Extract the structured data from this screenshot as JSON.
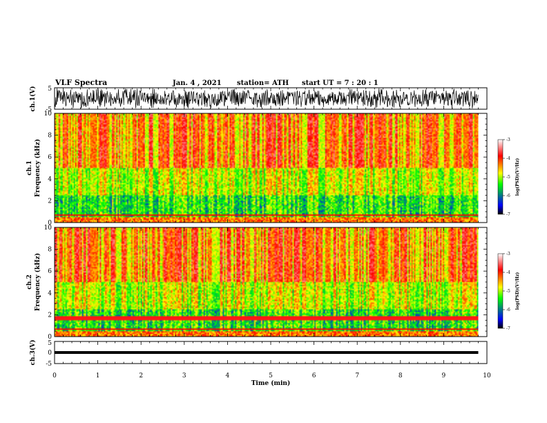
{
  "header": {
    "title": "VLF Spectra",
    "date": "Jan. 4 , 2021",
    "station": "station= ATH",
    "start": "start UT =  7 : 20 : 1"
  },
  "chart_data": {
    "type": "heatmap",
    "xlabel": "Time (min)",
    "x_ticks": [
      "0",
      "1",
      "2",
      "3",
      "4",
      "5",
      "6",
      "7",
      "8",
      "9",
      "10"
    ],
    "xlim": [
      0,
      10
    ],
    "data_end_min": 9.8,
    "panels": [
      {
        "id": "ch1-wave",
        "kind": "waveform",
        "ylabel": "ch.1(V)",
        "ylim": [
          -5,
          5
        ],
        "ytick_labels": [
          "5",
          "-5"
        ]
      },
      {
        "id": "ch1-spec",
        "kind": "spectrogram",
        "ylabel": "ch.1\nFrequency (kHz)",
        "ylim": [
          0,
          10
        ],
        "ytick_labels": [
          "0",
          "2",
          "4",
          "6",
          "8",
          "10"
        ]
      },
      {
        "id": "ch2-spec",
        "kind": "spectrogram",
        "ylabel": "ch.2\nFrequency (kHz)",
        "ylim": [
          0,
          10
        ],
        "ytick_labels": [
          "0",
          "2",
          "4",
          "6",
          "8",
          "10"
        ]
      },
      {
        "id": "ch3-wave",
        "kind": "waveform",
        "ylabel": "ch.3(V)",
        "ylim": [
          -5,
          5
        ],
        "ytick_labels": [
          "5",
          "0",
          "-5"
        ],
        "flat_level": 0
      }
    ],
    "colorbar": {
      "label": "log(PSD)(V²/Hz)",
      "range": [
        -7,
        -3
      ],
      "tick_labels": [
        "-3",
        "-4",
        "-5",
        "-6",
        "-7"
      ],
      "colors": [
        "#000000",
        "#0000ff",
        "#00ff00",
        "#ffff00",
        "#ff0000",
        "#ffffff"
      ]
    }
  }
}
